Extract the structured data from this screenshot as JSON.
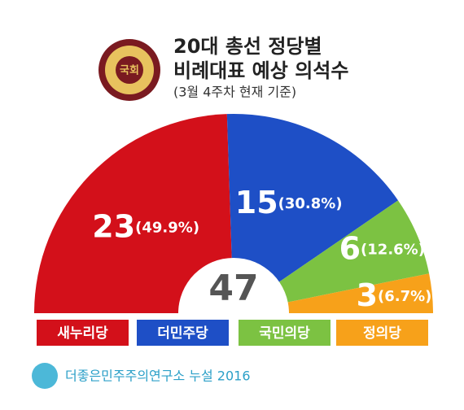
{
  "chart_data": {
    "type": "semi-donut",
    "title_lines": [
      "20대 총선 정당별",
      "비례대표 예상 의석수"
    ],
    "subtitle": "(3월 4주차 현재 기준)",
    "logo_text": "국회",
    "categories": [
      "새누리당",
      "더민주당",
      "국민의당",
      "정의당"
    ],
    "values": [
      23,
      15,
      6,
      3
    ],
    "share_labels": [
      "(49.9%)",
      "(30.8%)",
      "(12.6%)",
      "(6.7%)"
    ],
    "colors": [
      "#d3101a",
      "#1e4fc6",
      "#7cc242",
      "#f7a11a"
    ],
    "total": 47,
    "footer": "더좋은민주주의연구소 누설 2016"
  }
}
